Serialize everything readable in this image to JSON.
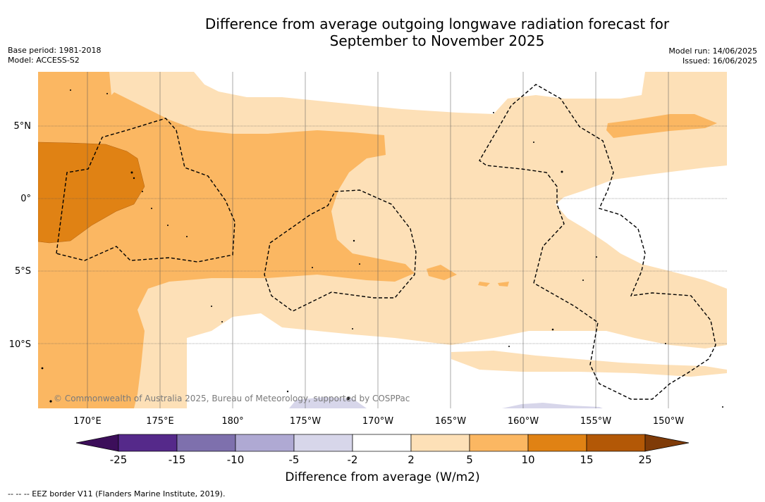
{
  "title_line1": "Difference from average outgoing longwave radiation forecast for",
  "title_line2": "September to November 2025",
  "base_period": "Base period: 1981-2018",
  "model": "Model: ACCESS-S2",
  "model_run": "Model run: 14/06/2025",
  "issued": "Issued: 16/06/2025",
  "copyright": "© Commonwealth of Australia 2025, Bureau of Meteorology, supported by COSPPac",
  "footnote": "--  --  -- EEZ border V11 (Flanders Marine Institute, 2019).",
  "lat_labels": [
    "5°N",
    "0°",
    "5°S",
    "10°S"
  ],
  "lon_labels": [
    "170°E",
    "175°E",
    "180°",
    "175°W",
    "170°W",
    "165°W",
    "160°W",
    "155°W",
    "150°W"
  ],
  "colorbar": {
    "label": "Difference from average (W/m2)",
    "ticks": [
      "-25",
      "-15",
      "-10",
      "-5",
      "-2",
      "2",
      "5",
      "10",
      "15",
      "25"
    ],
    "colors": [
      "#3c0e5a",
      "#55298a",
      "#7e70ad",
      "#afa9d3",
      "#d7d6ea",
      "#ffffff",
      "#fde0b7",
      "#fbb762",
      "#e08214",
      "#b35806",
      "#7f3b08"
    ]
  }
}
